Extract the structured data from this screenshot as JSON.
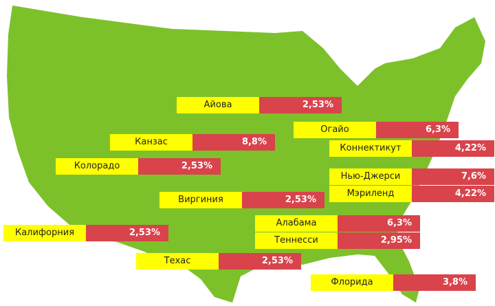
{
  "labels": [
    {
      "name": "Айова",
      "value": "2,53%"
    },
    {
      "name": "Огайо",
      "value": "6,3%"
    },
    {
      "name": "Канзас",
      "value": "8,8%"
    },
    {
      "name": "Коннектикут",
      "value": "4,22%"
    },
    {
      "name": "Колорадо",
      "value": "2,53%"
    },
    {
      "name": "Нью-Джерси",
      "value": "7,6%"
    },
    {
      "name": "Мэриленд",
      "value": "4,22%"
    },
    {
      "name": "Виргиния",
      "value": "2,53%"
    },
    {
      "name": "Алабама",
      "value": "6,3%"
    },
    {
      "name": "Теннесси",
      "value": "2,95%"
    },
    {
      "name": "Калифорния",
      "value": "2,53%"
    },
    {
      "name": "Техас",
      "value": "2,53%"
    },
    {
      "name": "Флорида",
      "value": "3,8%"
    }
  ]
}
